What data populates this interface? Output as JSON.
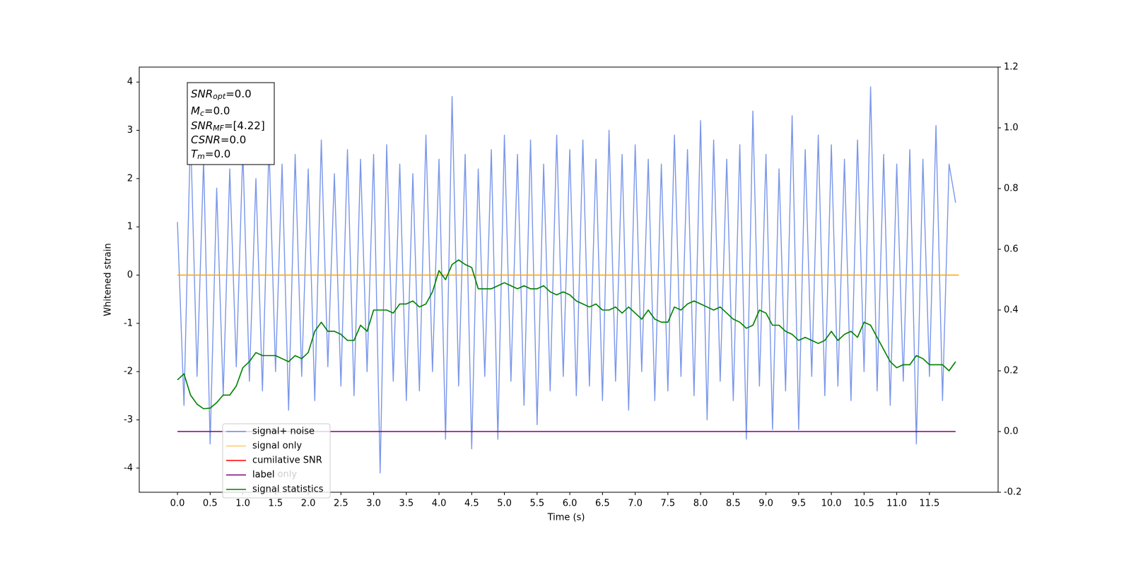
{
  "chart_data": {
    "type": "line",
    "xlabel": "Time (s)",
    "ylabel": "Whitened strain",
    "xlim": [
      -0.584,
      12.55
    ],
    "ylim": [
      -4.5,
      4.31
    ],
    "y2lim": [
      -0.2,
      1.2
    ],
    "xticks": [
      {
        "value": 0,
        "label": "0.0"
      },
      0.5,
      {
        "value": 1,
        "label": "1.0"
      },
      1.5,
      {
        "value": 2,
        "label": "2.0"
      },
      2.5,
      {
        "value": 3,
        "label": "3.0"
      },
      3.5,
      {
        "value": 4,
        "label": "4.0"
      },
      4.5,
      {
        "value": 5,
        "label": "5.0"
      },
      5.5,
      {
        "value": 6,
        "label": "6.0"
      },
      6.5,
      {
        "value": 7,
        "label": "7.0"
      },
      7.5,
      {
        "value": 8,
        "label": "8.0"
      },
      8.5,
      {
        "value": 9,
        "label": "9.0"
      },
      9.5,
      {
        "value": 10,
        "label": "10.0"
      },
      10.5,
      {
        "value": 11,
        "label": "11.0"
      },
      11.5
    ],
    "yticks": [
      -4,
      -3,
      -2,
      -1,
      0,
      1,
      2,
      3,
      4
    ],
    "y2ticks": [
      -0.2,
      {
        "value": 0,
        "label": "0.0"
      },
      0.2,
      0.4,
      0.6,
      0.8,
      {
        "value": 1,
        "label": "1.0"
      },
      1.2
    ],
    "legend": "lower left",
    "x": [
      0,
      0.1,
      0.2,
      0.3,
      0.4,
      0.5,
      0.6,
      0.7,
      0.8,
      0.9,
      1,
      1.1,
      1.2,
      1.3,
      1.4,
      1.5,
      1.6,
      1.7,
      1.8,
      1.9,
      2,
      2.1,
      2.2,
      2.3,
      2.4,
      2.5,
      2.6,
      2.7,
      2.8,
      2.9,
      3,
      3.1,
      3.2,
      3.3,
      3.4,
      3.5,
      3.6,
      3.7,
      3.8,
      3.9,
      4,
      4.1,
      4.2,
      4.3,
      4.4,
      4.5,
      4.6,
      4.7,
      4.8,
      4.9,
      5,
      5.1,
      5.2,
      5.3,
      5.4,
      5.5,
      5.6,
      5.7,
      5.8,
      5.9,
      6,
      6.1,
      6.2,
      6.3,
      6.4,
      6.5,
      6.6,
      6.7,
      6.8,
      6.9,
      7,
      7.1,
      7.2,
      7.3,
      7.4,
      7.5,
      7.6,
      7.7,
      7.8,
      7.9,
      8,
      8.1,
      8.2,
      8.3,
      8.4,
      8.5,
      8.6,
      8.7,
      8.8,
      8.9,
      9,
      9.1,
      9.2,
      9.3,
      9.4,
      9.5,
      9.6,
      9.7,
      9.8,
      9.9,
      10,
      10.1,
      10.2,
      10.3,
      10.4,
      10.5,
      10.6,
      10.7,
      10.8,
      10.9,
      11,
      11.1,
      11.2,
      11.3,
      11.4,
      11.5,
      11.6,
      11.7,
      11.8,
      11.9
    ],
    "series": [
      {
        "name": "signal+ noise",
        "color": "#4169e1",
        "values": [
          1.1,
          -2.7,
          3.0,
          -2.1,
          2.4,
          -3.5,
          1.8,
          -2.5,
          2.2,
          -1.9,
          2.6,
          -2.2,
          2.0,
          -2.4,
          2.7,
          -2.0,
          2.3,
          -2.8,
          2.5,
          -2.1,
          2.2,
          -2.6,
          2.8,
          -1.9,
          2.1,
          -2.3,
          2.6,
          -2.5,
          2.4,
          -2.0,
          2.5,
          -4.1,
          2.7,
          -2.2,
          2.3,
          -2.6,
          2.1,
          -2.4,
          2.9,
          -2.0,
          2.4,
          -3.4,
          3.7,
          -2.3,
          2.5,
          -3.6,
          2.2,
          -2.1,
          2.6,
          -3.4,
          2.9,
          -2.2,
          2.5,
          -2.7,
          2.8,
          -3.1,
          2.3,
          -2.4,
          2.9,
          -2.1,
          2.6,
          -2.5,
          2.8,
          -2.3,
          2.4,
          -2.6,
          3.0,
          -2.2,
          2.5,
          -2.8,
          2.7,
          -2.0,
          2.4,
          -2.6,
          2.3,
          -2.4,
          2.9,
          -2.1,
          2.6,
          -2.5,
          3.2,
          -3.0,
          2.8,
          -2.2,
          2.4,
          -2.6,
          2.7,
          -3.4,
          3.4,
          -2.3,
          2.5,
          -3.2,
          2.2,
          -2.4,
          3.3,
          -3.2,
          2.6,
          -2.1,
          2.9,
          -2.5,
          2.7,
          -2.3,
          2.4,
          -2.6,
          2.8,
          -2.0,
          3.9,
          -2.4,
          2.5,
          -2.7,
          2.3,
          -2.2,
          2.6,
          -3.5,
          2.4,
          -2.1,
          3.1,
          -2.6,
          2.3,
          1.5
        ]
      },
      {
        "name": "signal only",
        "color": "#ffa500",
        "x": [
          0,
          11.95
        ],
        "values": [
          0,
          0
        ]
      },
      {
        "name": "cumilative SNR",
        "color": "#ff0000"
      },
      {
        "name": "label",
        "color": "#800080",
        "axis": "y2",
        "x": [
          0,
          11.9
        ],
        "values": [
          0,
          0
        ]
      },
      {
        "name": "signal statistics",
        "color": "#008000",
        "axis": "y2",
        "values": [
          0.17,
          0.19,
          0.12,
          0.09,
          0.075,
          0.077,
          0.095,
          0.12,
          0.12,
          0.15,
          0.21,
          0.23,
          0.26,
          0.25,
          0.25,
          0.25,
          0.24,
          0.23,
          0.25,
          0.24,
          0.26,
          0.33,
          0.36,
          0.33,
          0.33,
          0.32,
          0.3,
          0.3,
          0.35,
          0.33,
          0.4,
          0.4,
          0.4,
          0.39,
          0.42,
          0.42,
          0.43,
          0.41,
          0.42,
          0.46,
          0.53,
          0.5,
          0.55,
          0.565,
          0.55,
          0.54,
          0.47,
          0.47,
          0.47,
          0.48,
          0.49,
          0.48,
          0.47,
          0.48,
          0.47,
          0.47,
          0.48,
          0.46,
          0.45,
          0.46,
          0.45,
          0.43,
          0.42,
          0.41,
          0.42,
          0.4,
          0.4,
          0.41,
          0.39,
          0.41,
          0.39,
          0.37,
          0.4,
          0.37,
          0.36,
          0.36,
          0.41,
          0.4,
          0.42,
          0.43,
          0.42,
          0.41,
          0.4,
          0.41,
          0.39,
          0.37,
          0.36,
          0.34,
          0.35,
          0.4,
          0.39,
          0.35,
          0.35,
          0.33,
          0.32,
          0.3,
          0.31,
          0.3,
          0.29,
          0.3,
          0.33,
          0.3,
          0.32,
          0.33,
          0.31,
          0.36,
          0.35,
          0.31,
          0.27,
          0.23,
          0.21,
          0.22,
          0.22,
          0.25,
          0.24,
          0.22,
          0.22,
          0.22,
          0.2,
          0.23
        ]
      }
    ],
    "annotations": [
      "label only"
    ],
    "info_box": [
      {
        "symbol": "SNR",
        "subscript": "opt",
        "text": "=0.0"
      },
      {
        "symbol": "M",
        "subscript": "c",
        "text": "=0.0"
      },
      {
        "symbol": "SNR",
        "subscript": "MF",
        "text": "=[4.22]"
      },
      {
        "symbol": "CSNR",
        "text": "=0.0"
      },
      {
        "symbol": "T",
        "subscript": "m",
        "text": "=0.0"
      }
    ]
  }
}
